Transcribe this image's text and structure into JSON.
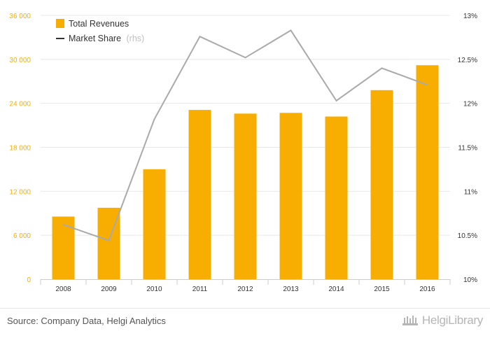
{
  "chart_data": {
    "type": "bar+line",
    "categories": [
      "2008",
      "2009",
      "2010",
      "2011",
      "2012",
      "2013",
      "2014",
      "2015",
      "2016"
    ],
    "series": [
      {
        "name": "Total Revenues",
        "type": "bar",
        "axis": "left",
        "color": "#f7ae00",
        "values": [
          8550,
          9750,
          15000,
          23100,
          22600,
          22700,
          22200,
          25800,
          29200
        ]
      },
      {
        "name": "Market Share",
        "suffix": "(rhs)",
        "type": "line",
        "axis": "right",
        "color": "#aaaaaa",
        "values": [
          10.62,
          10.44,
          11.82,
          12.76,
          12.52,
          12.83,
          12.03,
          12.4,
          12.21
        ]
      }
    ],
    "left_axis": {
      "min": 0,
      "max": 36000,
      "ticks": [
        0,
        6000,
        12000,
        18000,
        24000,
        30000,
        36000
      ],
      "tick_labels": [
        "0",
        "6 000",
        "12 000",
        "18 000",
        "24 000",
        "30 000",
        "36 000"
      ],
      "color": "#f7ae00"
    },
    "right_axis": {
      "min": 10,
      "max": 13,
      "ticks": [
        10,
        10.5,
        11,
        11.5,
        12,
        12.5,
        13
      ],
      "tick_labels": [
        "10%",
        "10.5%",
        "11%",
        "11.5%",
        "12%",
        "12.5%",
        "13%"
      ],
      "color": "#333333"
    },
    "legend": {
      "position": "top-left",
      "items": [
        "Total Revenues",
        "Market Share"
      ]
    },
    "title": "",
    "xlabel": "",
    "ylabel": ""
  },
  "footer": {
    "source": "Source: Company Data, Helgi Analytics",
    "logo_text_1": "Helgi",
    "logo_text_2": "Library",
    "logo_icon": "helgi-library-logo-icon"
  }
}
